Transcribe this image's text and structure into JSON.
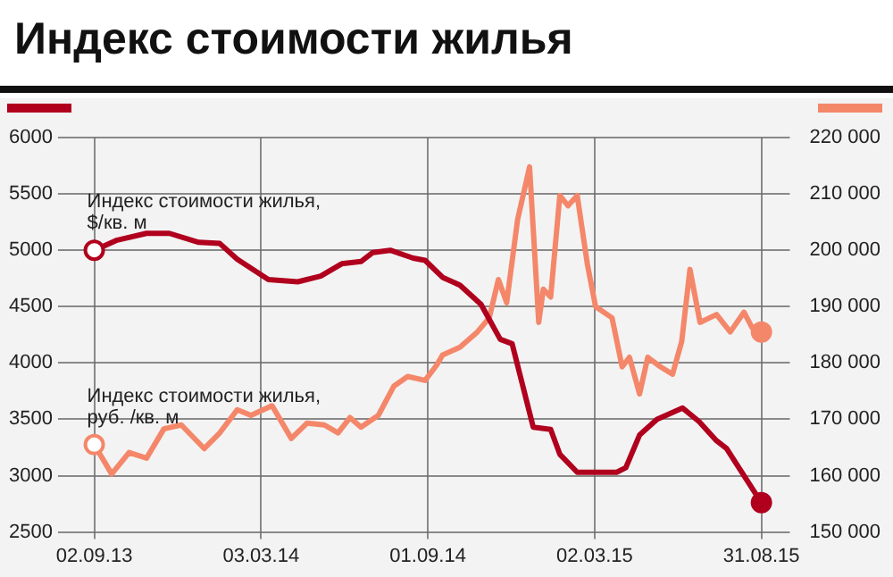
{
  "chart_data": {
    "type": "line",
    "title": "Индекс стоимости жилья",
    "xlim": [
      "2013-08-09",
      "2015-10-01"
    ],
    "xticks": [
      {
        "value": "2013-09-02",
        "label": "02.09.13"
      },
      {
        "value": "2014-03-03",
        "label": "03.03.14"
      },
      {
        "value": "2014-09-01",
        "label": "01.09.14"
      },
      {
        "value": "2015-03-02",
        "label": "02.03.15"
      },
      {
        "value": "2015-08-31",
        "label": "31.08.15"
      }
    ],
    "ylim": [
      2500,
      6000
    ],
    "yticks": [
      2500,
      3000,
      3500,
      4000,
      4500,
      5000,
      5500,
      6000
    ],
    "y2lim": [
      150000,
      220000
    ],
    "y2ticks": [
      {
        "value": 150000,
        "label": "150 000"
      },
      {
        "value": 160000,
        "label": "160 000"
      },
      {
        "value": 170000,
        "label": "170 000"
      },
      {
        "value": 180000,
        "label": "180 000"
      },
      {
        "value": 190000,
        "label": "190 000"
      },
      {
        "value": 200000,
        "label": "200 000"
      },
      {
        "value": 210000,
        "label": "210 000"
      },
      {
        "value": 220000,
        "label": "220 000"
      }
    ],
    "grid": true,
    "legend": false,
    "series": [
      {
        "name": "Индекс стоимости жилья, $/кв. м",
        "color": "#b0001e",
        "axis": "y",
        "x": [
          "2013-09-02",
          "2013-09-27",
          "2013-10-29",
          "2013-11-23",
          "2013-12-25",
          "2014-01-17",
          "2014-02-05",
          "2014-03-11",
          "2014-04-12",
          "2014-05-07",
          "2014-05-30",
          "2014-06-20",
          "2014-07-03",
          "2014-07-22",
          "2014-08-16",
          "2014-08-29",
          "2014-09-17",
          "2014-10-06",
          "2014-10-29",
          "2014-11-19",
          "2014-12-02",
          "2014-12-25",
          "2015-01-13",
          "2015-01-23",
          "2015-02-11",
          "2015-03-26",
          "2015-04-05",
          "2015-04-20",
          "2015-05-09",
          "2015-06-06",
          "2015-06-24",
          "2015-07-13",
          "2015-07-24",
          "2015-08-31"
        ],
        "values": [
          5000,
          5090,
          5150,
          5150,
          5070,
          5060,
          4920,
          4740,
          4720,
          4770,
          4880,
          4900,
          4980,
          5000,
          4930,
          4910,
          4760,
          4690,
          4520,
          4210,
          4170,
          3430,
          3410,
          3190,
          3030,
          3030,
          3070,
          3360,
          3500,
          3600,
          3480,
          3310,
          3240,
          2760
        ]
      },
      {
        "name": "Индекс стоимости жилья, руб. /кв. м",
        "color": "#f4876a",
        "axis": "y2",
        "x": [
          "2013-09-02",
          "2013-09-21",
          "2013-10-10",
          "2013-10-29",
          "2013-11-17",
          "2013-12-06",
          "2013-12-31",
          "2014-01-17",
          "2014-02-05",
          "2014-02-20",
          "2014-03-15",
          "2014-04-05",
          "2014-04-22",
          "2014-05-11",
          "2014-05-26",
          "2014-06-08",
          "2014-06-20",
          "2014-07-09",
          "2014-07-26",
          "2014-08-10",
          "2014-08-29",
          "2014-09-11",
          "2014-09-17",
          "2014-10-06",
          "2014-10-25",
          "2014-11-07",
          "2014-11-17",
          "2014-11-26",
          "2014-12-08",
          "2014-12-21",
          "2014-12-31",
          "2015-01-05",
          "2015-01-13",
          "2015-01-23",
          "2015-02-01",
          "2015-02-11",
          "2015-02-22",
          "2015-03-03",
          "2015-03-21",
          "2015-04-01",
          "2015-04-09",
          "2015-04-20",
          "2015-04-29",
          "2015-05-13",
          "2015-05-26",
          "2015-06-05",
          "2015-06-14",
          "2015-06-25",
          "2015-07-13",
          "2015-07-28",
          "2015-08-12",
          "2015-08-21",
          "2015-08-31"
        ],
        "values": [
          165500,
          160300,
          164100,
          163100,
          168300,
          169000,
          164800,
          167600,
          171700,
          170700,
          172400,
          166600,
          169300,
          169000,
          167600,
          170300,
          168600,
          170700,
          175900,
          177600,
          176900,
          179700,
          181400,
          182800,
          185500,
          188000,
          194800,
          190700,
          205500,
          214800,
          187200,
          193100,
          191700,
          209700,
          207900,
          209700,
          197600,
          190000,
          188000,
          179300,
          181000,
          174500,
          181000,
          179300,
          178000,
          183800,
          196600,
          187200,
          188600,
          185500,
          189000,
          186200,
          185500
        ]
      }
    ]
  }
}
